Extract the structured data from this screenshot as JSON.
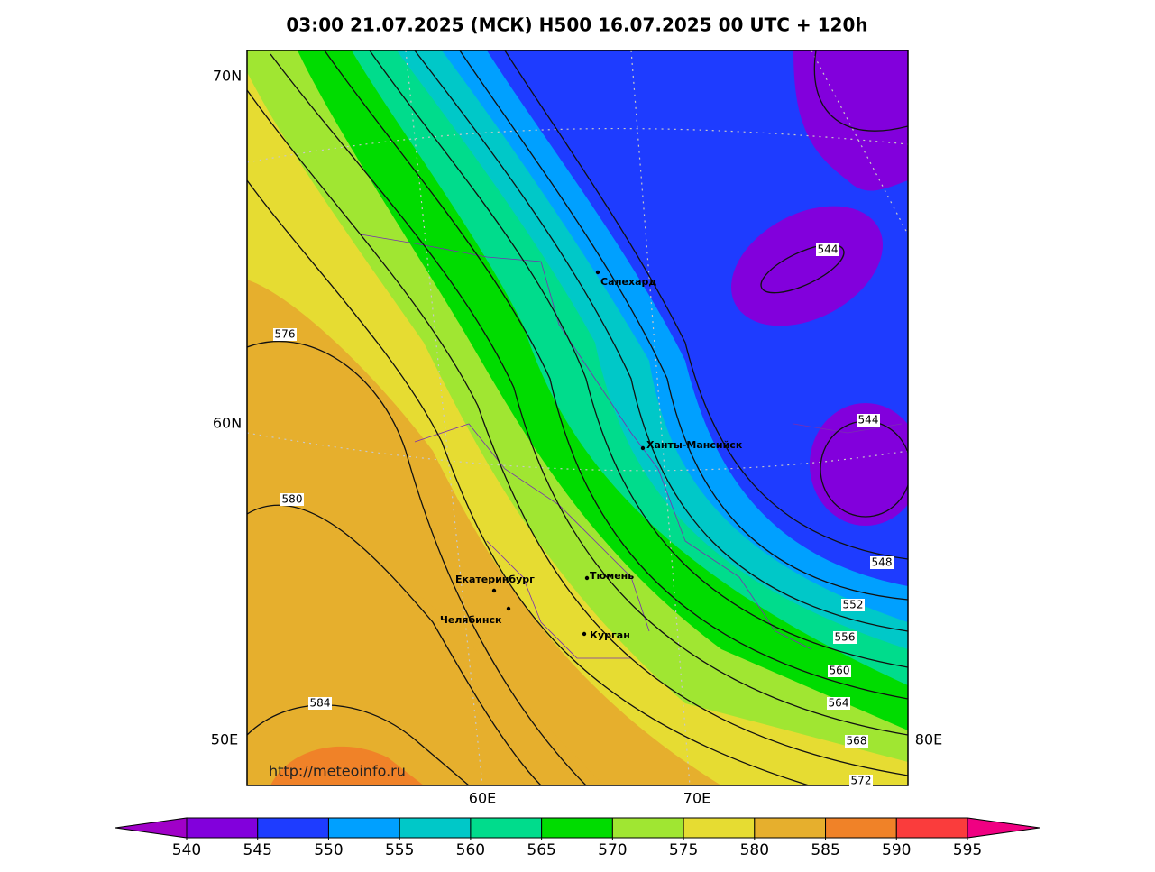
{
  "title": "03:00 21.07.2025 (МСК) H500  16.07.2025 00 UTC + 120h",
  "map": {
    "lat_labels": [
      "70N",
      "60N"
    ],
    "lon_labels": [
      "50E",
      "60E",
      "70E",
      "80E"
    ],
    "cities": [
      "Салехард",
      "Ханты-Мансийск",
      "Екатеринбург",
      "Челябинск",
      "Тюмень",
      "Курган"
    ],
    "contour_labels": [
      "544",
      "544",
      "548",
      "552",
      "556",
      "560",
      "564",
      "568",
      "572",
      "576",
      "580",
      "584"
    ],
    "url": "http://meteoinfo.ru"
  },
  "colorbar": {
    "ticks": [
      540,
      545,
      550,
      555,
      560,
      565,
      570,
      575,
      580,
      585,
      590,
      595
    ],
    "colors": [
      "#a000c8",
      "#8200dc",
      "#1e3cff",
      "#00a0ff",
      "#00c8c8",
      "#00dc8c",
      "#00dc00",
      "#a0e632",
      "#e6dc32",
      "#e6af2d",
      "#f08228",
      "#fa3c3c",
      "#f00082"
    ]
  }
}
